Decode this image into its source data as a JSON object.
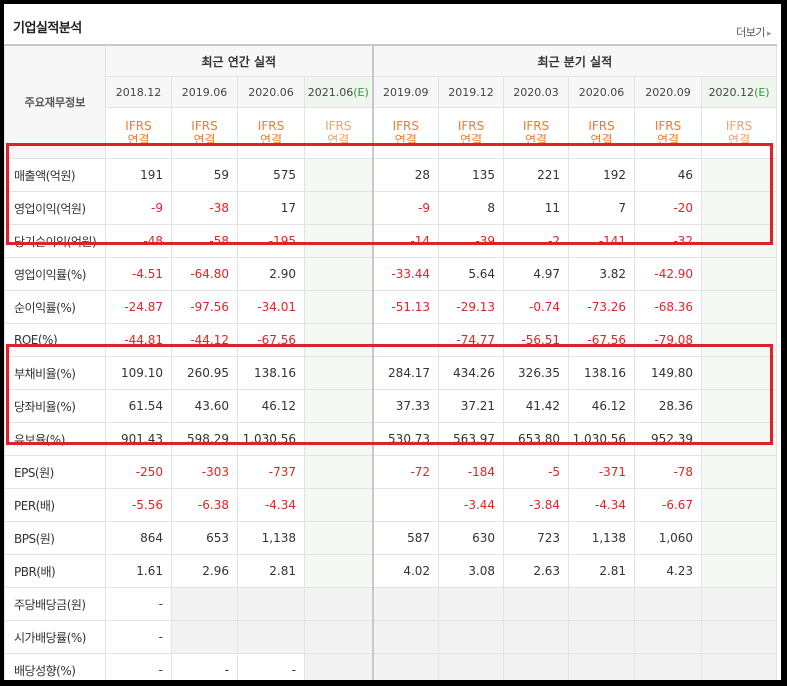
{
  "header": {
    "title": "기업실적분석",
    "more_label": "더보기",
    "more_arrow": "▸"
  },
  "columns": {
    "label_header": "주요재무정보",
    "annual_group": "최근 연간 실적",
    "quarter_group": "최근 분기 실적",
    "annual": [
      {
        "period": "2018.12",
        "estimate": "",
        "ifrs": "IFRS",
        "basis": "연결"
      },
      {
        "period": "2019.06",
        "estimate": "",
        "ifrs": "IFRS",
        "basis": "연결"
      },
      {
        "period": "2020.06",
        "estimate": "",
        "ifrs": "IFRS",
        "basis": "연결"
      },
      {
        "period": "2021.06",
        "estimate": "(E)",
        "ifrs": "IFRS",
        "basis": "연결"
      }
    ],
    "quarter": [
      {
        "period": "2019.09",
        "estimate": "",
        "ifrs": "IFRS",
        "basis": "연결"
      },
      {
        "period": "2019.12",
        "estimate": "",
        "ifrs": "IFRS",
        "basis": "연결"
      },
      {
        "period": "2020.03",
        "estimate": "",
        "ifrs": "IFRS",
        "basis": "연결"
      },
      {
        "period": "2020.06",
        "estimate": "",
        "ifrs": "IFRS",
        "basis": "연결"
      },
      {
        "period": "2020.09",
        "estimate": "",
        "ifrs": "IFRS",
        "basis": "연결"
      },
      {
        "period": "2020.12",
        "estimate": "(E)",
        "ifrs": "IFRS",
        "basis": "연결"
      }
    ]
  },
  "rows": [
    {
      "label": "매출액(억원)",
      "annual": [
        "191",
        "59",
        "575",
        ""
      ],
      "quarter": [
        "28",
        "135",
        "221",
        "192",
        "46",
        ""
      ]
    },
    {
      "label": "영업이익(억원)",
      "annual": [
        "-9",
        "-38",
        "17",
        ""
      ],
      "quarter": [
        "-9",
        "8",
        "11",
        "7",
        "-20",
        ""
      ]
    },
    {
      "label": "당기순이익(억원)",
      "annual": [
        "-48",
        "-58",
        "-195",
        ""
      ],
      "quarter": [
        "-14",
        "-39",
        "-2",
        "-141",
        "-32",
        ""
      ]
    },
    {
      "label": "영업이익률(%)",
      "annual": [
        "-4.51",
        "-64.80",
        "2.90",
        ""
      ],
      "quarter": [
        "-33.44",
        "5.64",
        "4.97",
        "3.82",
        "-42.90",
        ""
      ]
    },
    {
      "label": "순이익률(%)",
      "annual": [
        "-24.87",
        "-97.56",
        "-34.01",
        ""
      ],
      "quarter": [
        "-51.13",
        "-29.13",
        "-0.74",
        "-73.26",
        "-68.36",
        ""
      ]
    },
    {
      "label": "ROE(%)",
      "annual": [
        "-44.81",
        "-44.12",
        "-67.56",
        ""
      ],
      "quarter": [
        "",
        "-74.77",
        "-56.51",
        "-67.56",
        "-79.08",
        ""
      ]
    },
    {
      "label": "부채비율(%)",
      "annual": [
        "109.10",
        "260.95",
        "138.16",
        ""
      ],
      "quarter": [
        "284.17",
        "434.26",
        "326.35",
        "138.16",
        "149.80",
        ""
      ]
    },
    {
      "label": "당좌비율(%)",
      "annual": [
        "61.54",
        "43.60",
        "46.12",
        ""
      ],
      "quarter": [
        "37.33",
        "37.21",
        "41.42",
        "46.12",
        "28.36",
        ""
      ]
    },
    {
      "label": "유보율(%)",
      "annual": [
        "901.43",
        "598.29",
        "1,030.56",
        ""
      ],
      "quarter": [
        "530.73",
        "563.97",
        "653.80",
        "1,030.56",
        "952.39",
        ""
      ]
    },
    {
      "label": "EPS(원)",
      "annual": [
        "-250",
        "-303",
        "-737",
        ""
      ],
      "quarter": [
        "-72",
        "-184",
        "-5",
        "-371",
        "-78",
        ""
      ]
    },
    {
      "label": "PER(배)",
      "annual": [
        "-5.56",
        "-6.38",
        "-4.34",
        ""
      ],
      "quarter": [
        "",
        "-3.44",
        "-3.84",
        "-4.34",
        "-6.67",
        ""
      ]
    },
    {
      "label": "BPS(원)",
      "annual": [
        "864",
        "653",
        "1,138",
        ""
      ],
      "quarter": [
        "587",
        "630",
        "723",
        "1,138",
        "1,060",
        ""
      ]
    },
    {
      "label": "PBR(배)",
      "annual": [
        "1.61",
        "2.96",
        "2.81",
        ""
      ],
      "quarter": [
        "4.02",
        "3.08",
        "2.63",
        "2.81",
        "4.23",
        ""
      ]
    },
    {
      "label": "주당배당금(원)",
      "annual": [
        "-",
        "",
        "",
        ""
      ],
      "quarter": [
        "",
        "",
        "",
        "",
        "",
        ""
      ],
      "gray": true
    },
    {
      "label": "시가배당률(%)",
      "annual": [
        "-",
        "",
        "",
        ""
      ],
      "quarter": [
        "",
        "",
        "",
        "",
        "",
        ""
      ],
      "gray": true
    },
    {
      "label": "배당성향(%)",
      "annual": [
        "-",
        "-",
        "-",
        ""
      ],
      "quarter": [
        "",
        "",
        "",
        "",
        "",
        ""
      ],
      "gray": true
    }
  ],
  "colors": {
    "negative": "#e02424",
    "ifrs": "#f07a2e",
    "estimate": "#2a9a3a",
    "highlight_box": "#e0212b"
  }
}
